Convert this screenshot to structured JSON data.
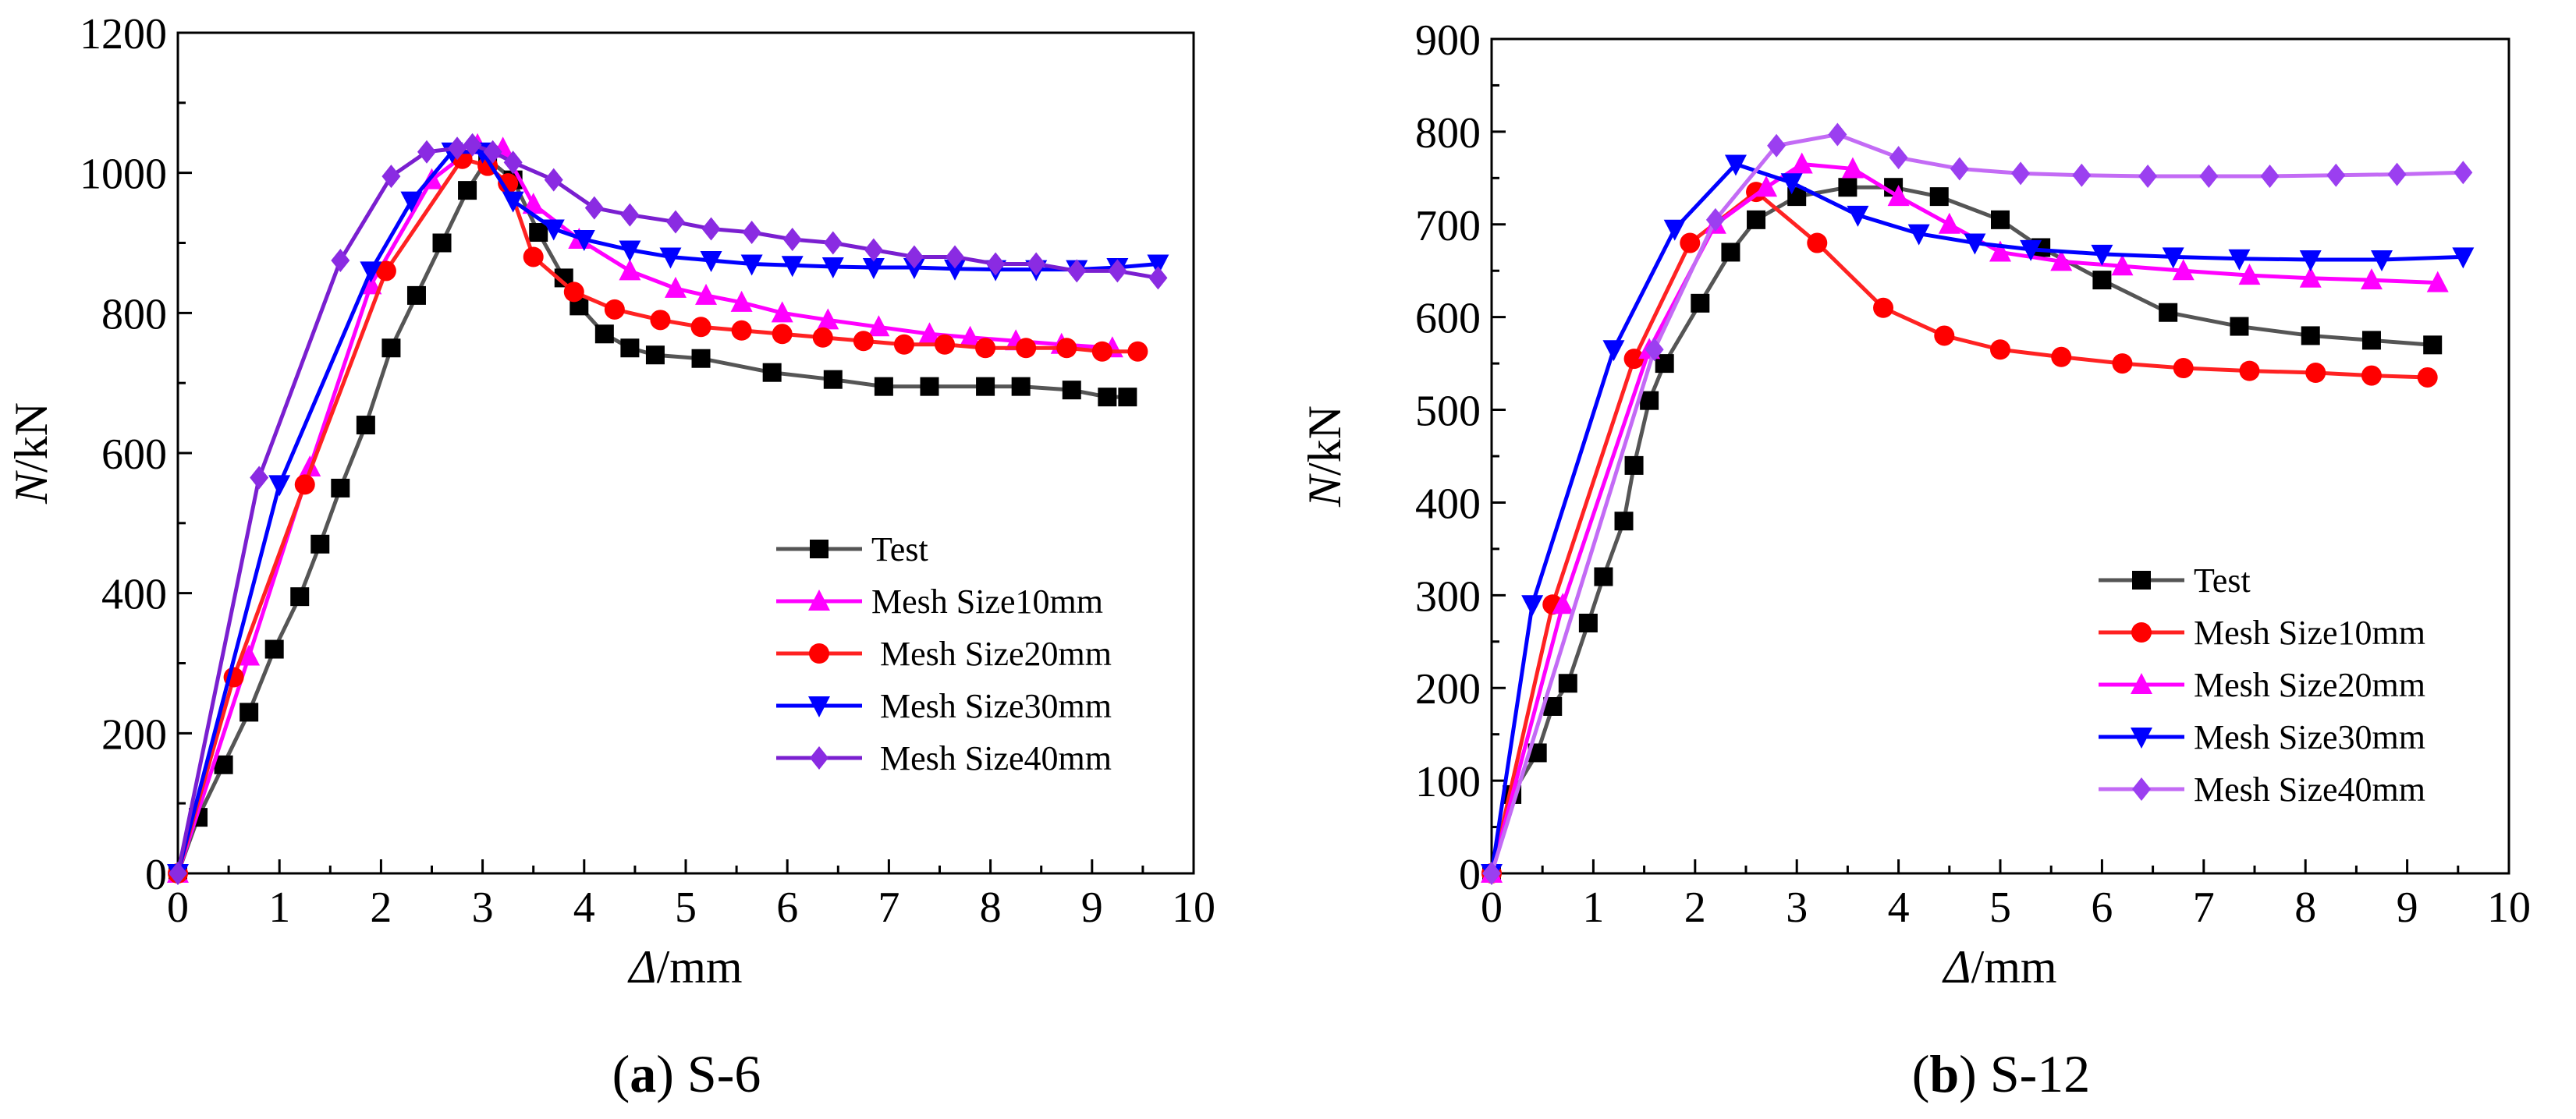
{
  "chart_data": [
    {
      "type": "line",
      "caption_letter": "(a)",
      "caption_title": "S-6",
      "xlabel_sym": "Δ",
      "xlabel_unit": "/mm",
      "ylabel_sym": "N",
      "ylabel_unit": "/kN",
      "xlim": [
        0,
        10
      ],
      "ylim": [
        0,
        1200
      ],
      "xticks": [
        0,
        1,
        2,
        3,
        4,
        5,
        6,
        7,
        8,
        9,
        10
      ],
      "yticks": [
        0,
        200,
        400,
        600,
        800,
        1000,
        1200
      ],
      "grid": false,
      "legend_position": "center-right",
      "series": [
        {
          "name": "Test",
          "color": "#555555",
          "marker": "square",
          "marker_color": "#000000",
          "x": [
            0,
            0.2,
            0.45,
            0.7,
            0.95,
            1.2,
            1.4,
            1.6,
            1.85,
            2.1,
            2.35,
            2.6,
            2.85,
            3.05,
            3.3,
            3.55,
            3.8,
            3.95,
            4.2,
            4.45,
            4.7,
            5.15,
            5.85,
            6.45,
            6.95,
            7.4,
            7.95,
            8.3,
            8.8,
            9.15,
            9.35
          ],
          "y": [
            0,
            80,
            155,
            230,
            320,
            395,
            470,
            550,
            640,
            750,
            825,
            900,
            975,
            1020,
            990,
            915,
            850,
            810,
            770,
            750,
            740,
            735,
            715,
            705,
            695,
            695,
            695,
            695,
            690,
            680,
            680
          ]
        },
        {
          "name": "Mesh Size10mm",
          "color": "#ff00ff",
          "marker": "triangle",
          "marker_color": "#ff00ff",
          "x": [
            0,
            0.7,
            1.3,
            1.9,
            2.5,
            2.95,
            3.2,
            3.5,
            3.95,
            4.45,
            4.9,
            5.2,
            5.55,
            5.95,
            6.4,
            6.9,
            7.4,
            7.8,
            8.25,
            8.7,
            9.2
          ],
          "y": [
            0,
            310,
            580,
            840,
            990,
            1040,
            1035,
            955,
            905,
            860,
            835,
            825,
            815,
            800,
            790,
            780,
            770,
            765,
            760,
            755,
            750
          ]
        },
        {
          "name": " Mesh Size20mm",
          "color": "#ff2222",
          "marker": "circle",
          "marker_color": "#ff0000",
          "x": [
            0,
            0.55,
            1.25,
            2.05,
            2.8,
            3.05,
            3.25,
            3.5,
            3.9,
            4.3,
            4.75,
            5.15,
            5.55,
            5.95,
            6.35,
            6.75,
            7.15,
            7.55,
            7.95,
            8.35,
            8.75,
            9.1,
            9.45
          ],
          "y": [
            0,
            280,
            555,
            860,
            1020,
            1010,
            985,
            880,
            830,
            805,
            790,
            780,
            775,
            770,
            765,
            760,
            755,
            755,
            750,
            750,
            750,
            745,
            745
          ]
        },
        {
          "name": " Mesh Size30mm",
          "color": "#0000ff",
          "marker": "triangle-down",
          "marker_color": "#0000ff",
          "x": [
            0,
            1.0,
            1.9,
            2.3,
            2.7,
            3.0,
            3.3,
            3.7,
            4.0,
            4.45,
            4.85,
            5.25,
            5.65,
            6.05,
            6.45,
            6.85,
            7.25,
            7.65,
            8.05,
            8.45,
            8.85,
            9.25,
            9.65
          ],
          "y": [
            0,
            555,
            860,
            960,
            1030,
            1030,
            960,
            920,
            905,
            890,
            880,
            875,
            870,
            868,
            866,
            865,
            865,
            863,
            862,
            862,
            862,
            865,
            870
          ]
        },
        {
          "name": " Mesh Size40mm",
          "color": "#7a1fd0",
          "marker": "diamond",
          "marker_color": "#8a2be2",
          "x": [
            0,
            0.8,
            1.6,
            2.1,
            2.45,
            2.75,
            2.9,
            3.1,
            3.3,
            3.7,
            4.1,
            4.45,
            4.9,
            5.25,
            5.65,
            6.05,
            6.45,
            6.85,
            7.25,
            7.65,
            8.05,
            8.45,
            8.85,
            9.25,
            9.65
          ],
          "y": [
            0,
            565,
            875,
            995,
            1030,
            1035,
            1040,
            1030,
            1015,
            990,
            950,
            940,
            930,
            920,
            915,
            905,
            900,
            890,
            880,
            880,
            870,
            870,
            860,
            860,
            850
          ]
        }
      ]
    },
    {
      "type": "line",
      "caption_letter": "(b)",
      "caption_title": "S-12",
      "xlabel_sym": "Δ",
      "xlabel_unit": "/mm",
      "ylabel_sym": "N",
      "ylabel_unit": "/kN",
      "xlim": [
        0,
        10
      ],
      "ylim": [
        0,
        900
      ],
      "xticks": [
        0,
        1,
        2,
        3,
        4,
        5,
        6,
        7,
        8,
        9,
        10
      ],
      "yticks": [
        0,
        100,
        200,
        300,
        400,
        500,
        600,
        700,
        800,
        900
      ],
      "grid": false,
      "legend_position": "center-right",
      "series": [
        {
          "name": "Test",
          "color": "#555555",
          "marker": "square",
          "marker_color": "#000000",
          "x": [
            0,
            0.2,
            0.45,
            0.6,
            0.75,
            0.95,
            1.1,
            1.3,
            1.4,
            1.55,
            1.7,
            2.05,
            2.35,
            2.6,
            3.0,
            3.5,
            3.95,
            4.4,
            5.0,
            5.4,
            6.0,
            6.65,
            7.35,
            8.05,
            8.65,
            9.25
          ],
          "y": [
            0,
            85,
            130,
            180,
            205,
            270,
            320,
            380,
            440,
            510,
            550,
            615,
            670,
            705,
            730,
            740,
            740,
            730,
            705,
            675,
            640,
            605,
            590,
            580,
            575,
            570
          ]
        },
        {
          "name": "Mesh Size10mm",
          "color": "#ff2222",
          "marker": "circle",
          "marker_color": "#ff0000",
          "x": [
            0,
            0.6,
            1.4,
            1.95,
            2.6,
            3.2,
            3.85,
            4.45,
            5.0,
            5.6,
            6.2,
            6.8,
            7.45,
            8.1,
            8.65,
            9.2
          ],
          "y": [
            0,
            290,
            555,
            680,
            735,
            680,
            610,
            580,
            565,
            557,
            550,
            545,
            542,
            540,
            537,
            535
          ]
        },
        {
          "name": "Mesh Size20mm",
          "color": "#ff00ff",
          "marker": "triangle",
          "marker_color": "#ff00ff",
          "x": [
            0,
            0.7,
            1.55,
            2.2,
            2.7,
            3.05,
            3.55,
            4.0,
            4.5,
            5.0,
            5.6,
            6.2,
            6.8,
            7.45,
            8.05,
            8.65,
            9.3
          ],
          "y": [
            0,
            290,
            565,
            700,
            740,
            765,
            760,
            730,
            700,
            670,
            660,
            655,
            650,
            645,
            642,
            640,
            637
          ]
        },
        {
          "name": "Mesh Size30mm",
          "color": "#0000ff",
          "marker": "triangle-down",
          "marker_color": "#0000ff",
          "x": [
            0,
            0.4,
            1.2,
            1.8,
            2.4,
            2.95,
            3.6,
            4.2,
            4.75,
            5.3,
            6.0,
            6.7,
            7.35,
            8.05,
            8.75,
            9.55
          ],
          "y": [
            0,
            290,
            565,
            695,
            765,
            745,
            710,
            690,
            680,
            673,
            668,
            665,
            663,
            662,
            662,
            665
          ]
        },
        {
          "name": "Mesh Size40mm",
          "color": "#c36bf5",
          "marker": "diamond",
          "marker_color": "#9b3ff0",
          "x": [
            0,
            1.6,
            2.2,
            2.8,
            3.4,
            4.0,
            4.6,
            5.2,
            5.8,
            6.45,
            7.05,
            7.65,
            8.3,
            8.9,
            9.55
          ],
          "y": [
            0,
            565,
            705,
            785,
            797,
            772,
            760,
            755,
            753,
            752,
            752,
            752,
            753,
            754,
            756
          ]
        }
      ]
    }
  ]
}
